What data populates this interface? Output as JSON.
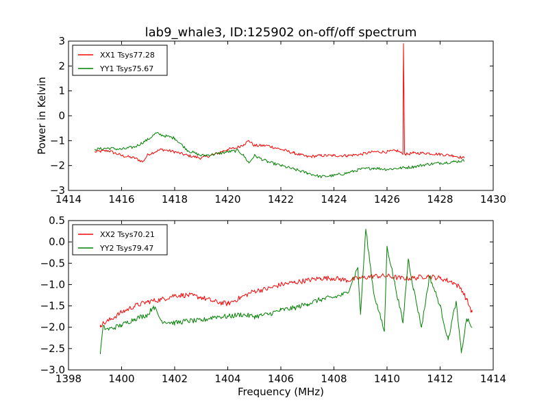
{
  "figure": {
    "title": "lab9_whale3, ID:125902 on-off/off spectrum",
    "xlabel": "Frequency (MHz)",
    "ylabel_top": "Power in Kelvin"
  },
  "chart_data": [
    {
      "type": "line",
      "title": "lab9_whale3, ID:125902 on-off/off spectrum",
      "ylabel": "Power in Kelvin",
      "xlabel": "",
      "xlim": [
        1414,
        1430
      ],
      "ylim": [
        -3,
        3
      ],
      "xticks": [
        1414,
        1416,
        1418,
        1420,
        1422,
        1424,
        1426,
        1428,
        1430
      ],
      "yticks": [
        -3,
        -2,
        -1,
        0,
        1,
        2,
        3
      ],
      "legend_position": "top-left",
      "series": [
        {
          "name": "XX1 Tsys77.28",
          "color": "#ff0000",
          "x": [
            1415.0,
            1415.5,
            1416.0,
            1416.5,
            1416.8,
            1417.0,
            1417.5,
            1418.0,
            1418.5,
            1419.0,
            1419.5,
            1420.0,
            1420.3,
            1420.6,
            1420.8,
            1421.0,
            1421.5,
            1422.0,
            1422.5,
            1423.0,
            1423.5,
            1424.0,
            1424.5,
            1425.0,
            1425.5,
            1426.0,
            1426.4,
            1426.6,
            1426.62,
            1426.66,
            1426.7,
            1427.0,
            1427.5,
            1428.0,
            1428.5,
            1428.9
          ],
          "y": [
            -1.45,
            -1.4,
            -1.6,
            -1.7,
            -1.85,
            -1.55,
            -1.35,
            -1.45,
            -1.6,
            -1.7,
            -1.55,
            -1.35,
            -1.3,
            -1.15,
            -1.0,
            -1.2,
            -1.2,
            -1.35,
            -1.5,
            -1.65,
            -1.6,
            -1.6,
            -1.6,
            -1.55,
            -1.45,
            -1.45,
            -1.4,
            -1.55,
            2.9,
            -1.5,
            -1.55,
            -1.5,
            -1.5,
            -1.55,
            -1.6,
            -1.7
          ]
        },
        {
          "name": "YY1 Tsys75.67",
          "color": "#008000",
          "x": [
            1415.0,
            1415.5,
            1416.0,
            1416.5,
            1417.0,
            1417.3,
            1417.6,
            1418.0,
            1418.5,
            1419.0,
            1419.5,
            1420.0,
            1420.4,
            1420.6,
            1420.8,
            1421.0,
            1421.5,
            1422.0,
            1422.5,
            1423.0,
            1423.5,
            1424.0,
            1424.5,
            1425.0,
            1425.5,
            1426.0,
            1426.5,
            1427.0,
            1427.5,
            1428.0,
            1428.5,
            1428.9
          ],
          "y": [
            -1.35,
            -1.3,
            -1.35,
            -1.25,
            -0.95,
            -0.7,
            -0.8,
            -0.9,
            -1.4,
            -1.6,
            -1.55,
            -1.45,
            -1.4,
            -1.6,
            -1.9,
            -1.6,
            -1.85,
            -2.0,
            -2.15,
            -2.3,
            -2.45,
            -2.4,
            -2.3,
            -2.15,
            -2.1,
            -2.15,
            -2.1,
            -2.05,
            -1.95,
            -1.9,
            -1.85,
            -1.8
          ]
        }
      ]
    },
    {
      "type": "line",
      "title": "",
      "xlabel": "Frequency (MHz)",
      "ylabel": "",
      "xlim": [
        1398,
        1414
      ],
      "ylim": [
        -3.0,
        0.5
      ],
      "xticks": [
        1398,
        1400,
        1402,
        1404,
        1406,
        1408,
        1410,
        1412,
        1414
      ],
      "yticks": [
        -3.0,
        -2.5,
        -2.0,
        -1.5,
        -1.0,
        -0.5,
        0.0,
        0.5
      ],
      "legend_position": "top-left",
      "series": [
        {
          "name": "XX2 Tsys70.21",
          "color": "#ff0000",
          "x": [
            1399.2,
            1399.5,
            1400.0,
            1400.5,
            1401.0,
            1401.5,
            1402.0,
            1402.5,
            1403.0,
            1403.5,
            1404.0,
            1404.5,
            1405.0,
            1405.5,
            1406.0,
            1406.5,
            1407.0,
            1407.5,
            1408.0,
            1408.5,
            1409.0,
            1409.5,
            1410.0,
            1410.5,
            1411.0,
            1411.5,
            1412.0,
            1412.5,
            1412.8,
            1413.0,
            1413.2
          ],
          "y": [
            -1.95,
            -1.85,
            -1.65,
            -1.5,
            -1.4,
            -1.35,
            -1.25,
            -1.25,
            -1.3,
            -1.4,
            -1.45,
            -1.3,
            -1.15,
            -1.1,
            -1.0,
            -0.95,
            -0.9,
            -0.85,
            -0.85,
            -0.9,
            -0.85,
            -0.8,
            -0.8,
            -0.85,
            -0.85,
            -0.8,
            -0.85,
            -0.95,
            -1.1,
            -1.35,
            -1.65
          ]
        },
        {
          "name": "YY2 Tsys79.47",
          "color": "#008000",
          "x": [
            1399.2,
            1399.3,
            1399.5,
            1400.0,
            1400.5,
            1401.0,
            1401.2,
            1401.5,
            1402.0,
            1402.5,
            1403.0,
            1403.5,
            1404.0,
            1404.5,
            1405.0,
            1405.5,
            1406.0,
            1406.5,
            1407.0,
            1407.5,
            1408.0,
            1408.5,
            1408.9,
            1409.0,
            1409.2,
            1409.5,
            1409.9,
            1410.0,
            1410.3,
            1410.6,
            1410.8,
            1411.0,
            1411.3,
            1411.6,
            1412.0,
            1412.3,
            1412.6,
            1412.8,
            1413.0,
            1413.2
          ],
          "y": [
            -2.6,
            -2.0,
            -2.05,
            -1.95,
            -1.8,
            -1.7,
            -1.5,
            -1.85,
            -1.9,
            -1.85,
            -1.85,
            -1.75,
            -1.75,
            -1.7,
            -1.75,
            -1.7,
            -1.6,
            -1.55,
            -1.45,
            -1.35,
            -1.3,
            -1.2,
            -0.6,
            -1.7,
            0.3,
            -1.2,
            -2.1,
            -0.1,
            -1.0,
            -1.9,
            -0.4,
            -1.1,
            -2.0,
            -0.8,
            -1.5,
            -2.3,
            -1.4,
            -2.6,
            -1.8,
            -2.0
          ]
        }
      ]
    }
  ]
}
